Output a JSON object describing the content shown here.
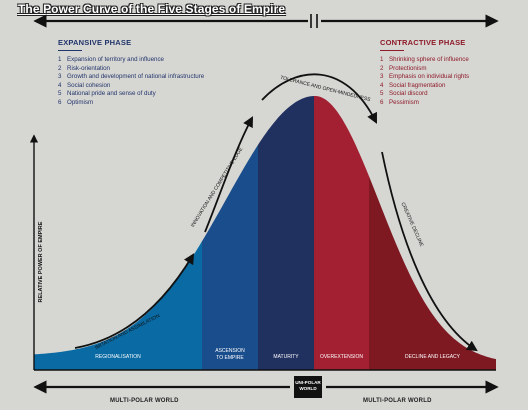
{
  "title": "The Power Curve of the Five Stages of Empire",
  "expansive": {
    "heading": "EXPANSIVE PHASE",
    "items": [
      {
        "num": "1",
        "text": "Expansion of territory and influence"
      },
      {
        "num": "2",
        "text": "Risk-orientation"
      },
      {
        "num": "3",
        "text": "Growth and development of national infrastructure"
      },
      {
        "num": "4",
        "text": "Social cohesion"
      },
      {
        "num": "5",
        "text": "National pride and sense of duty"
      },
      {
        "num": "6",
        "text": "Optimism"
      }
    ]
  },
  "contractive": {
    "heading": "CONTRACTIVE PHASE",
    "items": [
      {
        "num": "1",
        "text": "Shrinking sphere of influence"
      },
      {
        "num": "2",
        "text": "Protectionism"
      },
      {
        "num": "3",
        "text": "Emphasis on individual rights"
      },
      {
        "num": "4",
        "text": "Social fragmentation"
      },
      {
        "num": "5",
        "text": "Social discord"
      },
      {
        "num": "6",
        "text": "Pessimism"
      }
    ]
  },
  "y_axis_label": "RELATIVE POWER OF EMPIRE",
  "curve_labels": {
    "imitation": "IMITATION AND ASSIMILATION",
    "innovation": "INNOVATION AND COMPETITIVE EDGE",
    "tolerance": "TOLERANCE AND OPEN-MINDEDNESS",
    "creative": "CREATIVE DECLINE"
  },
  "stages": [
    {
      "line1": "REGIONALISATION",
      "line2": "",
      "color": "#0a6aa3"
    },
    {
      "line1": "ASCENSION",
      "line2": "TO EMPIRE",
      "color": "#1a4d8c"
    },
    {
      "line1": "MATURITY",
      "line2": "",
      "color": "#20305f"
    },
    {
      "line1": "OVEREXTENSION",
      "line2": "",
      "color": "#a32032"
    },
    {
      "line1": "DECLINE AND LEGACY",
      "line2": "",
      "color": "#7e1922"
    }
  ],
  "bottom": {
    "left": "MULTI-POLAR WORLD",
    "center_line1": "UNI-POLAR",
    "center_line2": "WORLD",
    "right": "MULTI-POLAR WORLD"
  },
  "colors": {
    "expansive": "#22356b",
    "contractive": "#8e1b28",
    "background": "#d6d6d3"
  }
}
